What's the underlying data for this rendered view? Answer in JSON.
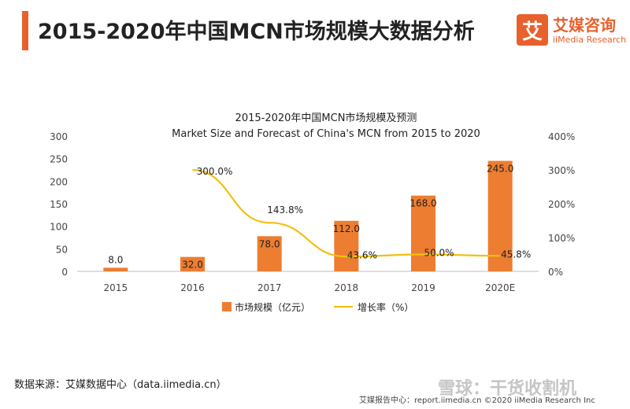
{
  "header": {
    "title": "2015-2020年中国MCN市场规模大数据分析"
  },
  "logo": {
    "badge": "艾",
    "name_cn": "艾媒咨询",
    "name_en": "iiMedia Research"
  },
  "source": "数据来源：艾媒数据中心（data.iimedia.cn）",
  "footer": "艾媒报告中心：report.iimedia.cn ©2020 iiMedia Research Inc",
  "watermark": "雪球：干货收割机",
  "colors": {
    "accent": "#e8612c",
    "bar": "#ed7d31",
    "line": "#f2c00f"
  },
  "chart_data": {
    "type": "bar",
    "title": "2015-2020年中国MCN市场规模及预测",
    "subtitle": "Market Size and Forecast of China's MCN from 2015 to 2020",
    "categories": [
      "2015",
      "2016",
      "2017",
      "2018",
      "2019",
      "2020E"
    ],
    "series": [
      {
        "name": "市场规模（亿元）",
        "type": "bar",
        "axis": "left",
        "values": [
          8.0,
          32.0,
          78.0,
          112.0,
          168.0,
          245.0
        ],
        "labels": [
          "8.0",
          "32.0",
          "78.0",
          "112.0",
          "168.0",
          "245.0"
        ]
      },
      {
        "name": "增长率（%）",
        "type": "line",
        "axis": "right",
        "values": [
          null,
          300.0,
          143.8,
          43.6,
          50.0,
          45.8
        ],
        "labels": [
          "",
          "300.0%",
          "143.8%",
          "43.6%",
          "50.0%",
          "45.8%"
        ]
      }
    ],
    "ylim": [
      0,
      300
    ],
    "yticks": [
      "0",
      "50",
      "100",
      "150",
      "200",
      "250",
      "300"
    ],
    "y2lim": [
      0,
      400
    ],
    "y2ticks": [
      "0%",
      "100%",
      "200%",
      "300%",
      "400%"
    ],
    "legend": "bottom-center"
  }
}
